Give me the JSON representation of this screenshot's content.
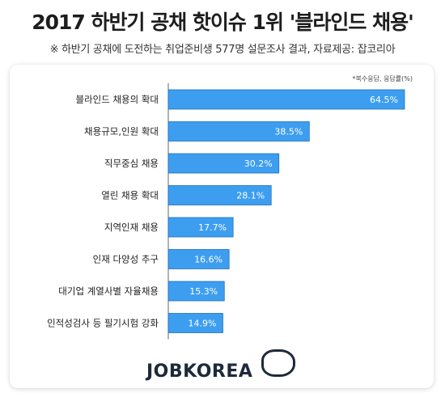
{
  "header": {
    "title": "2017 하반기 공채 핫이슈 1위 '블라인드 채용'",
    "subtitle": "※ 하반기 공채에 도전하는 취업준비생 577명 설문조사 결과,  자료제공: 잡코리아"
  },
  "footer": {
    "logo": "JOBKOREA"
  },
  "colors": {
    "bar": "#3d9ef0",
    "bar_border": "#1f6fc0",
    "axis": "#666666"
  },
  "chart_data": {
    "type": "bar",
    "orientation": "horizontal",
    "note": "*복수응답, 응답률(%)",
    "categories": [
      "블라인드 채용의 확대",
      "채용규모,인원 확대",
      "직무중심 채용",
      "열린 채용 확대",
      "지역인재 채용",
      "인재 다양성 추구",
      "대기업 계열사별 자율채용",
      "인적성검사 등 필기시험 강화"
    ],
    "values": [
      64.5,
      38.5,
      30.2,
      28.1,
      17.7,
      16.6,
      15.3,
      14.9
    ],
    "value_labels": [
      "64.5%",
      "38.5%",
      "30.2%",
      "28.1%",
      "17.7%",
      "16.6%",
      "15.3%",
      "14.9%"
    ],
    "xlim": [
      0,
      64.5
    ],
    "grid": false,
    "legend": "none"
  }
}
